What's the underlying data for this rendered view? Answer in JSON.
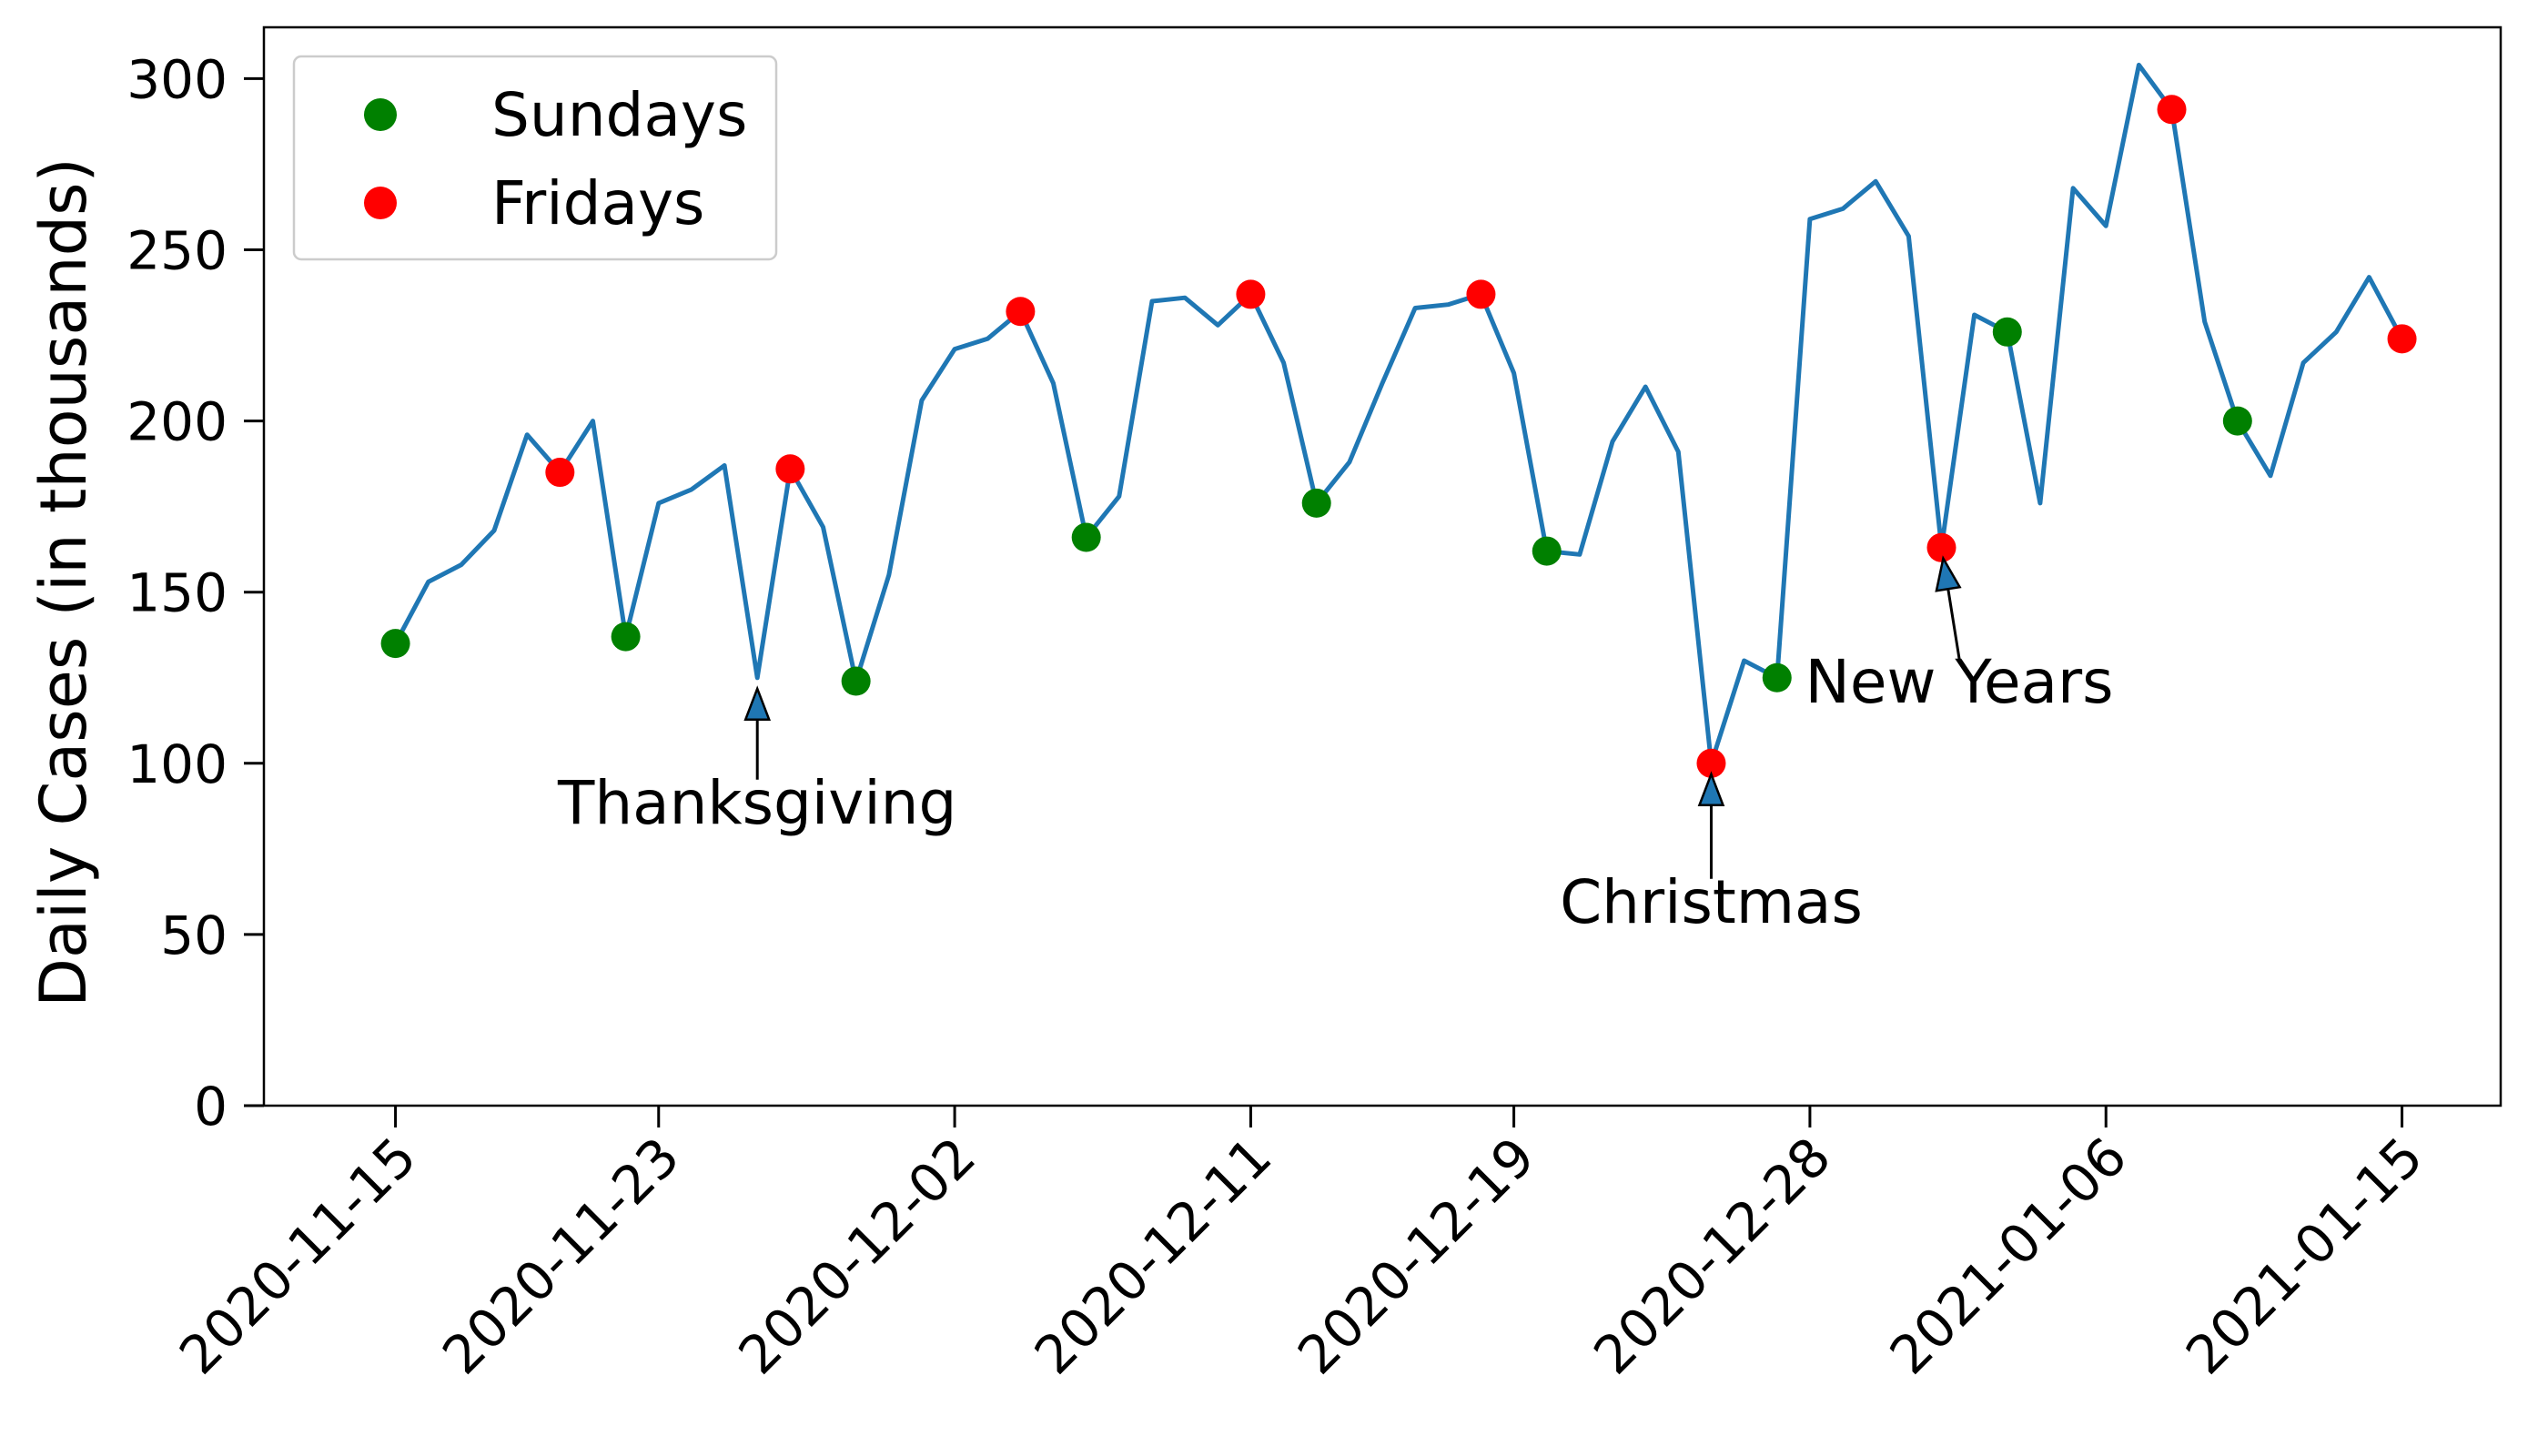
{
  "chart_data": {
    "type": "line",
    "ylabel": "Daily Cases (in thousands)",
    "xlabel": "",
    "ylim": [
      0,
      315
    ],
    "xlim": [
      "2020-11-11",
      "2021-01-18"
    ],
    "yticks": [
      0,
      50,
      100,
      150,
      200,
      250,
      300
    ],
    "xticks": [
      "2020-11-15",
      "2020-11-23",
      "2020-12-02",
      "2020-12-11",
      "2020-12-19",
      "2020-12-28",
      "2021-01-06",
      "2021-01-15"
    ],
    "grid": false,
    "legend_position": "top-left",
    "line_color": "#1f77b4",
    "series": [
      {
        "x": [
          "2020-11-15",
          "2020-11-16",
          "2020-11-17",
          "2020-11-18",
          "2020-11-19",
          "2020-11-20",
          "2020-11-21",
          "2020-11-22",
          "2020-11-23",
          "2020-11-24",
          "2020-11-25",
          "2020-11-26",
          "2020-11-27",
          "2020-11-28",
          "2020-11-29",
          "2020-11-30",
          "2020-12-01",
          "2020-12-02",
          "2020-12-03",
          "2020-12-04",
          "2020-12-05",
          "2020-12-06",
          "2020-12-07",
          "2020-12-08",
          "2020-12-09",
          "2020-12-10",
          "2020-12-11",
          "2020-12-12",
          "2020-12-13",
          "2020-12-14",
          "2020-12-15",
          "2020-12-16",
          "2020-12-17",
          "2020-12-18",
          "2020-12-19",
          "2020-12-20",
          "2020-12-21",
          "2020-12-22",
          "2020-12-23",
          "2020-12-24",
          "2020-12-25",
          "2020-12-26",
          "2020-12-27",
          "2020-12-28",
          "2020-12-29",
          "2020-12-30",
          "2020-12-31",
          "2021-01-01",
          "2021-01-02",
          "2021-01-03",
          "2021-01-04",
          "2021-01-05",
          "2021-01-06",
          "2021-01-07",
          "2021-01-08",
          "2021-01-09",
          "2021-01-10",
          "2021-01-11",
          "2021-01-12",
          "2021-01-13",
          "2021-01-14",
          "2021-01-15"
        ],
        "values": [
          135,
          153,
          158,
          168,
          196,
          185,
          200,
          137,
          176,
          180,
          187,
          125,
          186,
          169,
          124,
          155,
          206,
          221,
          224,
          232,
          211,
          166,
          178,
          235,
          236,
          228,
          237,
          217,
          176,
          188,
          211,
          233,
          234,
          237,
          214,
          162,
          161,
          194,
          210,
          191,
          100,
          130,
          125,
          259,
          262,
          270,
          254,
          163,
          231,
          226,
          176,
          268,
          257,
          304,
          291,
          229,
          200,
          184,
          217,
          226,
          242,
          224
        ]
      }
    ],
    "scatter_series": [
      {
        "name": "Sundays",
        "color": "#008000",
        "x": [
          "2020-11-15",
          "2020-11-22",
          "2020-11-29",
          "2020-12-06",
          "2020-12-13",
          "2020-12-20",
          "2020-12-27",
          "2021-01-03",
          "2021-01-10"
        ],
        "values": [
          135,
          137,
          124,
          166,
          176,
          162,
          125,
          226,
          200
        ]
      },
      {
        "name": "Fridays",
        "color": "#ff0000",
        "x": [
          "2020-11-20",
          "2020-11-27",
          "2020-12-04",
          "2020-12-11",
          "2020-12-18",
          "2020-12-25",
          "2021-01-01",
          "2021-01-08",
          "2021-01-15"
        ],
        "values": [
          185,
          186,
          232,
          237,
          237,
          100,
          163,
          291,
          224
        ]
      }
    ],
    "annotations": [
      {
        "text": "Thanksgiving",
        "x": "2020-11-26",
        "y": 125
      },
      {
        "text": "Christmas",
        "x": "2020-12-25",
        "y": 100
      },
      {
        "text": "New Years",
        "x": "2021-01-01",
        "y": 163
      }
    ]
  }
}
